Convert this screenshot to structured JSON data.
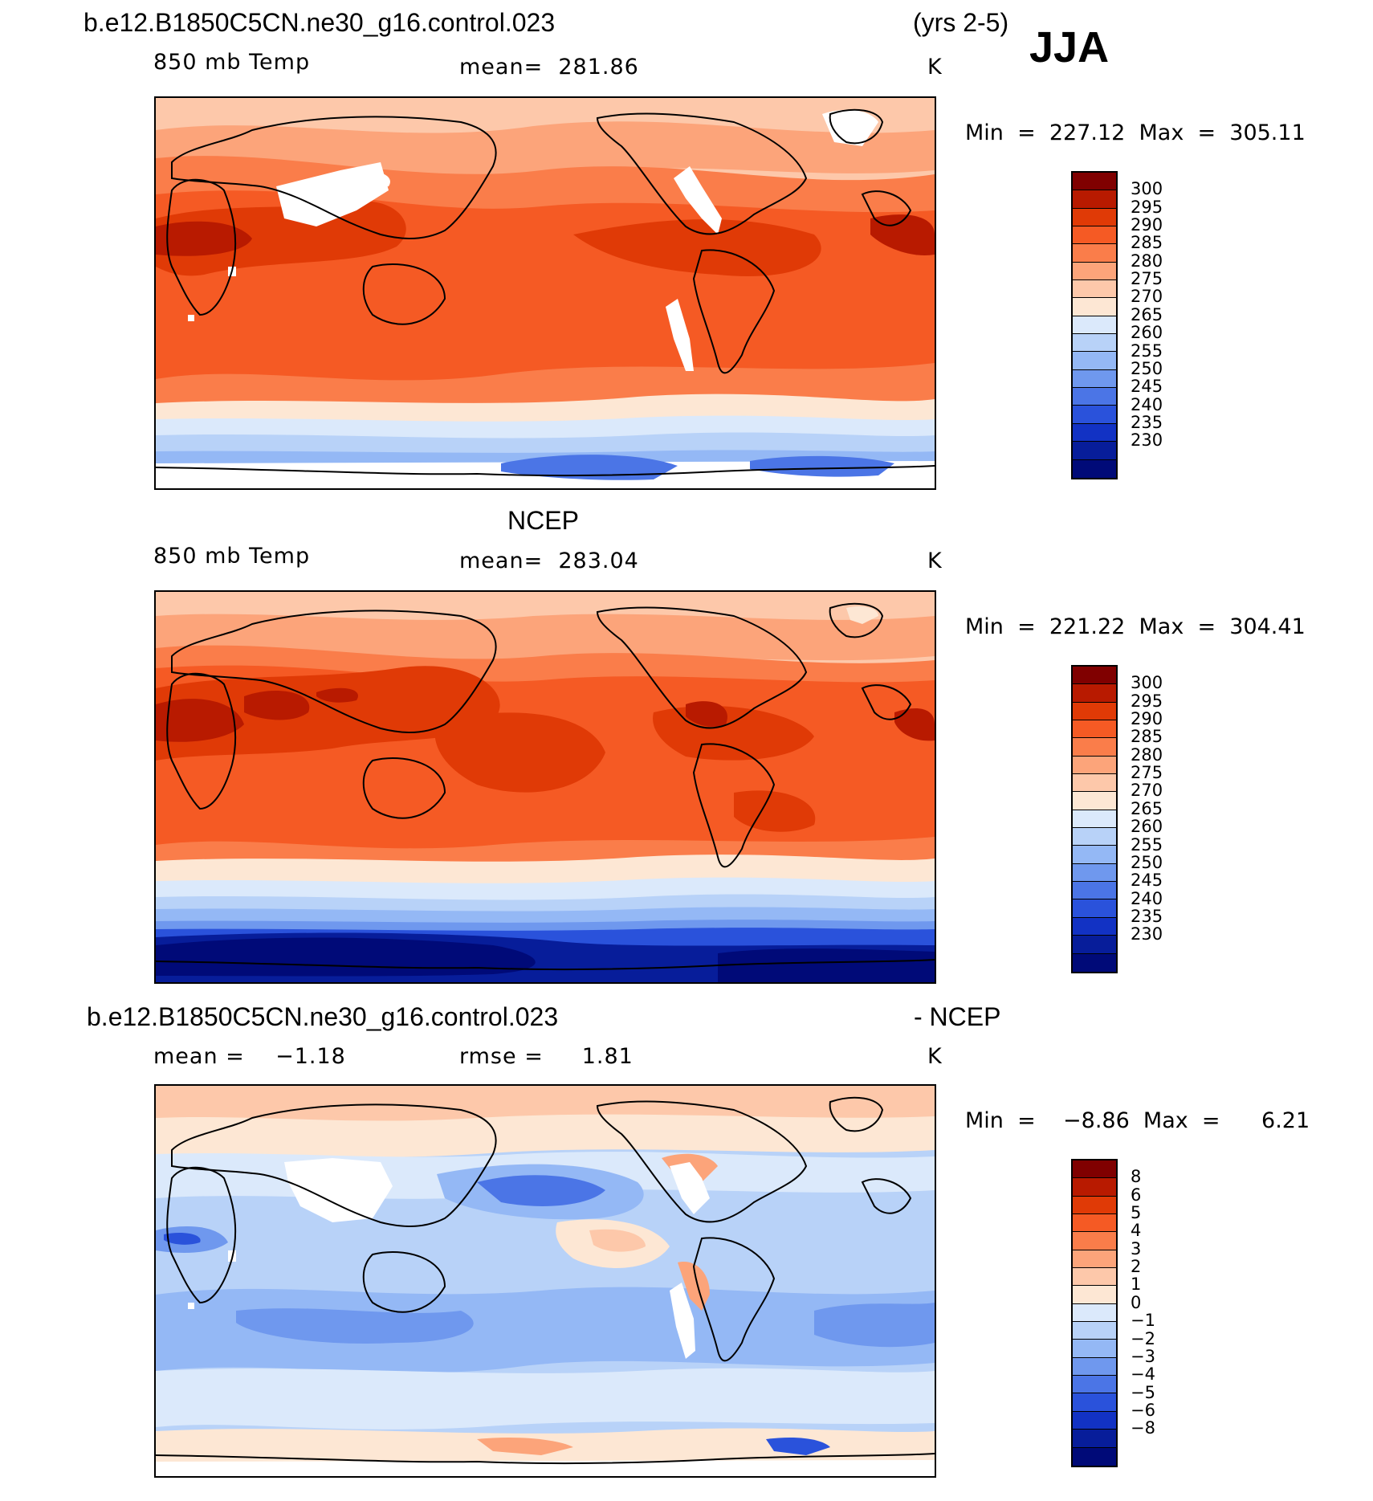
{
  "header": {
    "case_name": "b.e12.B1850C5CN.ne30_g16.control.023",
    "years": "(yrs 2-5)",
    "season": "JJA"
  },
  "panels": [
    {
      "id": "model",
      "title": "",
      "variable": "850 mb Temp",
      "stat": "mean=  281.86",
      "units": "K",
      "minmax": "Min  =  227.12  Max  =  305.11",
      "colorbar": {
        "colors": [
          "#800000",
          "#b81a00",
          "#e03a06",
          "#f55a24",
          "#fa7d4a",
          "#fca47a",
          "#fdc8aa",
          "#fde7d4",
          "#dbe9fb",
          "#b8d2f8",
          "#94b8f5",
          "#6f98ee",
          "#4b75e6",
          "#2a52db",
          "#1232c4",
          "#071d9a",
          "#000a78"
        ],
        "labels": [
          "300",
          "295",
          "290",
          "285",
          "280",
          "275",
          "270",
          "265",
          "260",
          "255",
          "250",
          "245",
          "240",
          "235",
          "230"
        ]
      }
    },
    {
      "id": "obs",
      "title": "NCEP",
      "variable": "850 mb Temp",
      "stat": "mean=  283.04",
      "units": "K",
      "minmax": "Min  =  221.22  Max  =  304.41",
      "colorbar": {
        "colors": [
          "#800000",
          "#b81a00",
          "#e03a06",
          "#f55a24",
          "#fa7d4a",
          "#fca47a",
          "#fdc8aa",
          "#fde7d4",
          "#dbe9fb",
          "#b8d2f8",
          "#94b8f5",
          "#6f98ee",
          "#4b75e6",
          "#2a52db",
          "#1232c4",
          "#071d9a",
          "#000a78"
        ],
        "labels": [
          "300",
          "295",
          "290",
          "285",
          "280",
          "275",
          "270",
          "265",
          "260",
          "255",
          "250",
          "245",
          "240",
          "235",
          "230"
        ]
      }
    },
    {
      "id": "diff",
      "title_left": "b.e12.B1850C5CN.ne30_g16.control.023",
      "title_right": "- NCEP",
      "variable": "mean =    −1.18",
      "stat": "rmse =     1.81",
      "units": "K",
      "minmax": "Min  =    −8.86  Max  =      6.21",
      "colorbar": {
        "colors": [
          "#800000",
          "#b81a00",
          "#e03a06",
          "#f55a24",
          "#fa7d4a",
          "#fca47a",
          "#fdc8aa",
          "#fde7d4",
          "#dbe9fb",
          "#b8d2f8",
          "#94b8f5",
          "#6f98ee",
          "#4b75e6",
          "#2a52db",
          "#1232c4",
          "#071d9a",
          "#000a78"
        ],
        "labels": [
          "8",
          "6",
          "5",
          "4",
          "3",
          "2",
          "1",
          "0",
          "−1",
          "−2",
          "−3",
          "−4",
          "−5",
          "−6",
          "−8"
        ]
      }
    }
  ]
}
